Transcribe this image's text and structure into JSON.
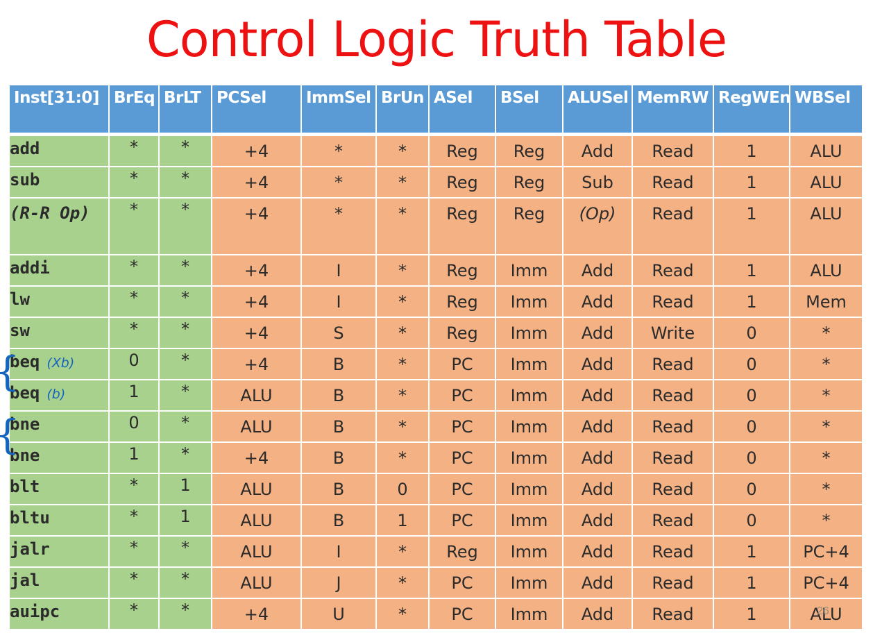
{
  "title": "Control Logic Truth Table",
  "columns": [
    "Inst[31:0]",
    "BrEq",
    "BrLT",
    "PCSel",
    "ImmSel",
    "BrUn",
    "ASel",
    "BSel",
    "ALUSel",
    "MemRW",
    "RegWEn",
    "WBSel"
  ],
  "rows": [
    {
      "inst": "add",
      "cells": [
        "*",
        "*",
        "+4",
        "*",
        "*",
        "Reg",
        "Reg",
        "Add",
        "Read",
        "1",
        "ALU"
      ]
    },
    {
      "inst": "sub",
      "cells": [
        "*",
        "*",
        "+4",
        "*",
        "*",
        "Reg",
        "Reg",
        "Sub",
        "Read",
        "1",
        "ALU"
      ]
    },
    {
      "inst": "(R-R Op)",
      "cells": [
        "*",
        "*",
        "+4",
        "*",
        "*",
        "Reg",
        "Reg",
        "(Op)",
        "Read",
        "1",
        "ALU"
      ]
    },
    {
      "inst": "addi",
      "cells": [
        "*",
        "*",
        "+4",
        "I",
        "*",
        "Reg",
        "Imm",
        "Add",
        "Read",
        "1",
        "ALU"
      ]
    },
    {
      "inst": "lw",
      "cells": [
        "*",
        "*",
        "+4",
        "I",
        "*",
        "Reg",
        "Imm",
        "Add",
        "Read",
        "1",
        "Mem"
      ]
    },
    {
      "inst": "sw",
      "cells": [
        "*",
        "*",
        "+4",
        "S",
        "*",
        "Reg",
        "Imm",
        "Add",
        "Write",
        "0",
        "*"
      ]
    },
    {
      "inst": "beq",
      "annotation": "(Xb)",
      "cells": [
        "0",
        "*",
        "+4",
        "B",
        "*",
        "PC",
        "Imm",
        "Add",
        "Read",
        "0",
        "*"
      ]
    },
    {
      "inst": "beq",
      "annotation": "(b)",
      "cells": [
        "1",
        "*",
        "ALU",
        "B",
        "*",
        "PC",
        "Imm",
        "Add",
        "Read",
        "0",
        "*"
      ]
    },
    {
      "inst": "bne",
      "cells": [
        "0",
        "*",
        "ALU",
        "B",
        "*",
        "PC",
        "Imm",
        "Add",
        "Read",
        "0",
        "*"
      ]
    },
    {
      "inst": "bne",
      "cells": [
        "1",
        "*",
        "+4",
        "B",
        "*",
        "PC",
        "Imm",
        "Add",
        "Read",
        "0",
        "*"
      ]
    },
    {
      "inst": "blt",
      "cells": [
        "*",
        "1",
        "ALU",
        "B",
        "0",
        "PC",
        "Imm",
        "Add",
        "Read",
        "0",
        "*"
      ]
    },
    {
      "inst": "bltu",
      "cells": [
        "*",
        "1",
        "ALU",
        "B",
        "1",
        "PC",
        "Imm",
        "Add",
        "Read",
        "0",
        "*"
      ]
    },
    {
      "inst": "jalr",
      "cells": [
        "*",
        "*",
        "ALU",
        "I",
        "*",
        "Reg",
        "Imm",
        "Add",
        "Read",
        "1",
        "PC+4"
      ]
    },
    {
      "inst": "jal",
      "cells": [
        "*",
        "*",
        "ALU",
        "J",
        "*",
        "PC",
        "Imm",
        "Add",
        "Read",
        "1",
        "PC+4"
      ]
    },
    {
      "inst": "auipc",
      "cells": [
        "*",
        "*",
        "+4",
        "U",
        "*",
        "PC",
        "Imm",
        "Add",
        "Read",
        "1",
        "ALU"
      ]
    }
  ],
  "page_number": "26",
  "colors": {
    "title": "#ee1111",
    "header": "#5b9bd5",
    "green": "#a9d18e",
    "orange": "#f4b183",
    "annotation": "#1565c0"
  }
}
